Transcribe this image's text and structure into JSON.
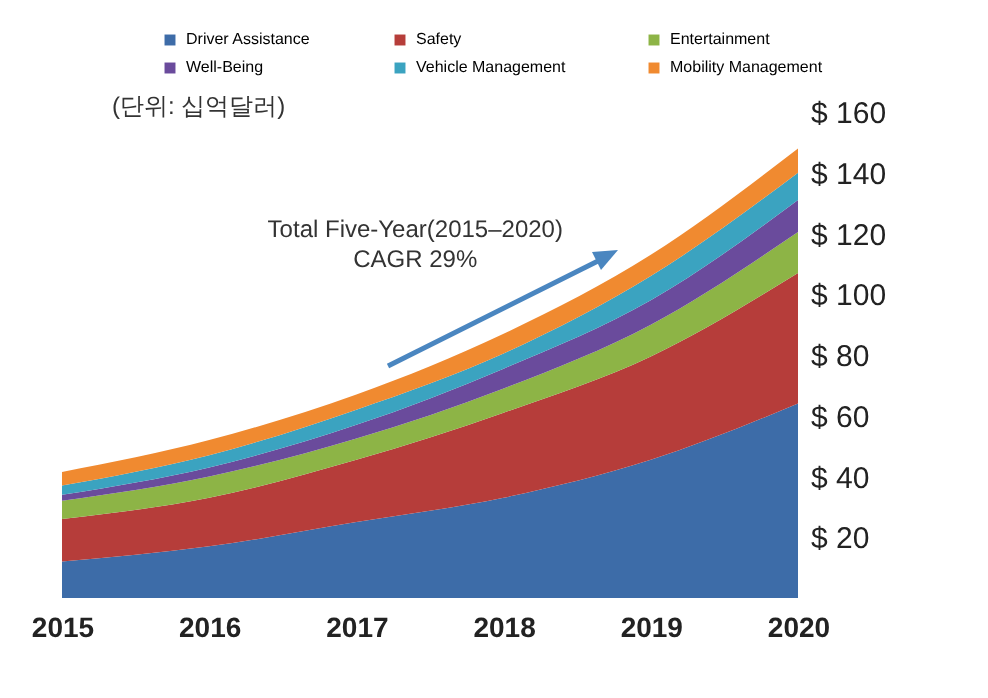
{
  "chart_data": {
    "type": "area",
    "stacked": true,
    "categories": [
      "2015",
      "2016",
      "2017",
      "2018",
      "2019",
      "2020"
    ],
    "series": [
      {
        "name": "Driver Assistance",
        "color": "#3d6ca8",
        "values": [
          12,
          17,
          25,
          33,
          45.5,
          64
        ]
      },
      {
        "name": "Safety",
        "color": "#b63d3a",
        "values": [
          14,
          16,
          20.5,
          28,
          34,
          43
        ]
      },
      {
        "name": "Entertainment",
        "color": "#8db446",
        "values": [
          6,
          7,
          7,
          8,
          10.5,
          13.5
        ]
      },
      {
        "name": "Well-Being",
        "color": "#6a4b9c",
        "values": [
          2,
          3,
          4.5,
          6.5,
          8,
          10.5
        ]
      },
      {
        "name": "Vehicle Management",
        "color": "#3ba3c0",
        "values": [
          3,
          4,
          5,
          5,
          8,
          9
        ]
      },
      {
        "name": "Mobility Management",
        "color": "#f08a30",
        "values": [
          4.5,
          5,
          5,
          6.5,
          7,
          8
        ]
      }
    ],
    "ylim": [
      0,
      160
    ],
    "yticks": [
      {
        "value": 20,
        "label": "$ 20"
      },
      {
        "value": 40,
        "label": "$ 40"
      },
      {
        "value": 60,
        "label": "$ 60"
      },
      {
        "value": 80,
        "label": "$ 80"
      },
      {
        "value": 100,
        "label": "$ 100"
      },
      {
        "value": 120,
        "label": "$ 120"
      },
      {
        "value": 140,
        "label": "$ 140"
      },
      {
        "value": 160,
        "label": "$ 160"
      }
    ],
    "legend": "top",
    "grid": false,
    "annotations": [
      "(단위: 십억달러)",
      "Total Five-Year(2015–2020)\nCAGR 29%"
    ]
  }
}
